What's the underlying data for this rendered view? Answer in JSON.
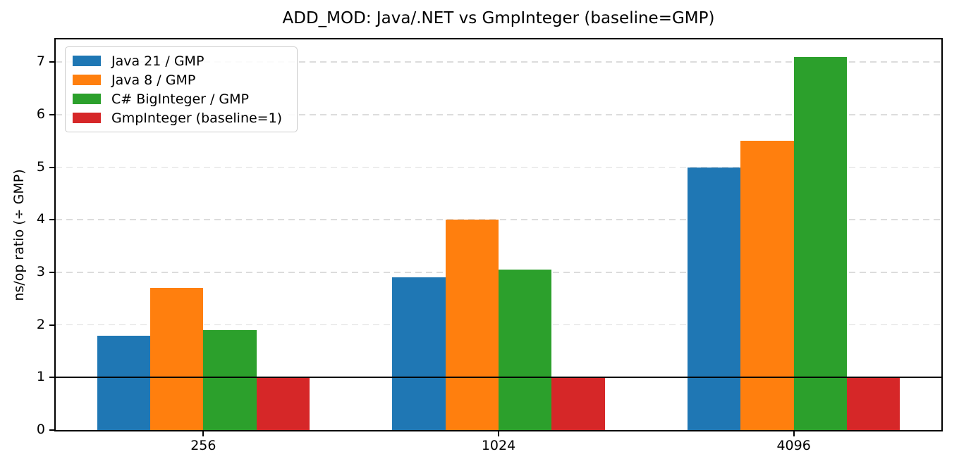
{
  "title": "ADD_MOD: Java/.NET vs GmpInteger (baseline=GMP)",
  "chart_data": {
    "type": "bar",
    "title": "ADD_MOD: Java/.NET vs GmpInteger (baseline=GMP)",
    "xlabel": "",
    "ylabel": "ns/op ratio (÷ GMP)",
    "categories": [
      "256",
      "1024",
      "4096"
    ],
    "series": [
      {
        "name": "Java 21 / GMP",
        "color": "#1f77b4",
        "values": [
          1.8,
          2.9,
          5.0
        ]
      },
      {
        "name": "Java 8 / GMP",
        "color": "#ff7f0e",
        "values": [
          2.7,
          4.0,
          5.5
        ]
      },
      {
        "name": "C# BigInteger / GMP",
        "color": "#2ca02c",
        "values": [
          1.9,
          3.05,
          7.1
        ]
      },
      {
        "name": "GmpInteger (baseline=1)",
        "color": "#d62728",
        "values": [
          1.0,
          1.0,
          1.0
        ]
      }
    ],
    "yticks": [
      0,
      1,
      2,
      3,
      4,
      5,
      6,
      7
    ],
    "ylim": [
      0,
      7.43
    ],
    "baseline_value": 1,
    "baseline_color": "#000000",
    "grid": "horizontal-dashed",
    "grid_color": "#dcdcdc",
    "legend_position": "upper-left",
    "bar_width_fraction": 0.18
  }
}
